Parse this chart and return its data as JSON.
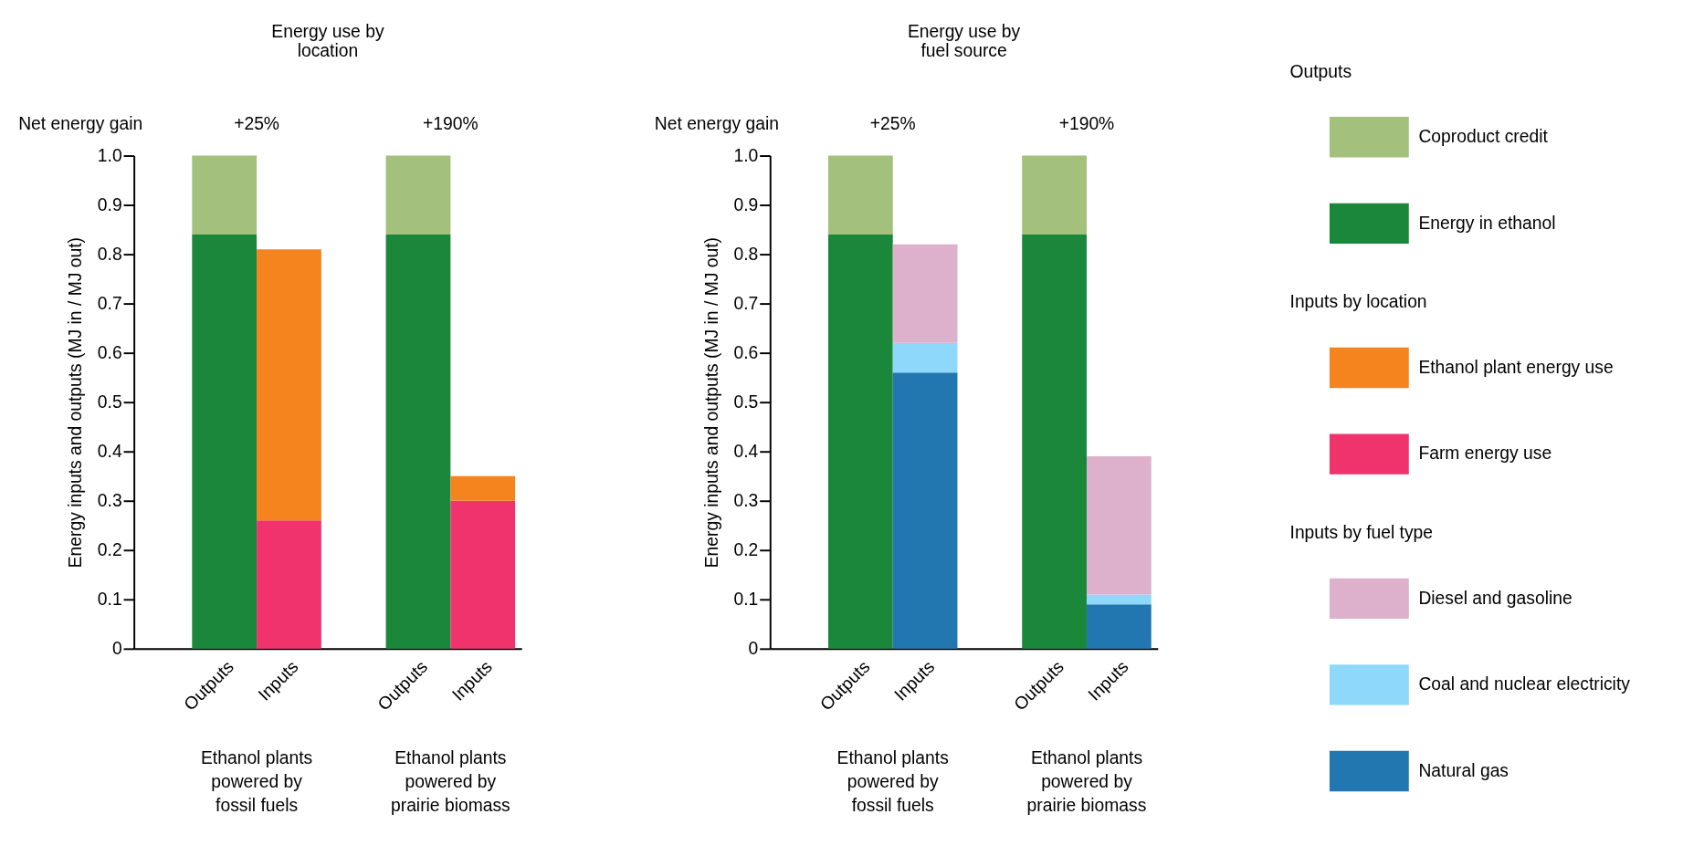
{
  "chart_data": [
    {
      "type": "bar",
      "title": "Energy use by location",
      "ylabel": "Energy inputs and outputs (MJ in / MJ out)",
      "stacked": true,
      "categories": [
        "Outputs",
        "Inputs",
        "Outputs",
        "Inputs"
      ],
      "series": [
        {
          "name": "Energy in ethanol",
          "color": "#1a873b",
          "values": [
            0.84,
            null,
            0.84,
            null
          ]
        },
        {
          "name": "Coproduct credit",
          "color": "#a3c07c",
          "values": [
            0.16,
            null,
            0.16,
            null
          ]
        },
        {
          "name": "Farm energy use",
          "color": "#f0336c",
          "values": [
            null,
            0.26,
            null,
            0.3
          ]
        },
        {
          "name": "Ethanol plant energy use",
          "color": "#f5841f",
          "values": [
            null,
            0.55,
            null,
            0.05
          ]
        }
      ],
      "ylim": [
        0,
        1
      ],
      "yticks": [
        0,
        0.1,
        0.2,
        0.3,
        0.4,
        0.5,
        0.6,
        0.7,
        0.8,
        0.9,
        {
          "value": 1,
          "label": "1.0"
        }
      ],
      "grid": false,
      "legend": "right",
      "annotations": [
        "Net energy gain",
        "+25%",
        "+190%",
        "Ethanol plants powered by fossil fuels",
        "Ethanol plants powered by prairie biomass"
      ]
    },
    {
      "type": "bar",
      "title": "Energy use by fuel source",
      "ylabel": "Energy inputs and outputs (MJ in / MJ out)",
      "stacked": true,
      "categories": [
        "Outputs",
        "Inputs",
        "Outputs",
        "Inputs"
      ],
      "series": [
        {
          "color": "#1a873b",
          "values": [
            0.84,
            null,
            0.84,
            null
          ]
        },
        {
          "color": "#a3c07c",
          "values": [
            0.16,
            null,
            0.16,
            null
          ]
        },
        {
          "name": "Natural gas",
          "color": "#2277b0",
          "values": [
            null,
            0.56,
            null,
            0.09
          ]
        },
        {
          "name": "Coal and nuclear electricity",
          "color": "#8dd8fb",
          "values": [
            null,
            0.06,
            null,
            0.02
          ]
        },
        {
          "name": "Diesel and gasoline",
          "color": "#ddb0cb",
          "values": [
            null,
            0.2,
            null,
            0.28
          ]
        }
      ],
      "ylim": [
        0,
        1
      ],
      "yticks": [
        0,
        0.1,
        0.2,
        0.3,
        0.4,
        0.5,
        0.6,
        0.7,
        0.8,
        0.9,
        {
          "value": 1,
          "label": "1.0"
        }
      ],
      "grid": false,
      "legend": "right",
      "annotations": [
        "Net energy gain",
        "+25%",
        "+190%",
        "Ethanol plants powered by fossil fuels",
        "Ethanol plants powered by prairie biomass"
      ]
    },
    {
      "type": "other",
      "annotations": [
        "Outputs",
        "Inputs by location",
        "Inputs by fuel type"
      ]
    }
  ]
}
